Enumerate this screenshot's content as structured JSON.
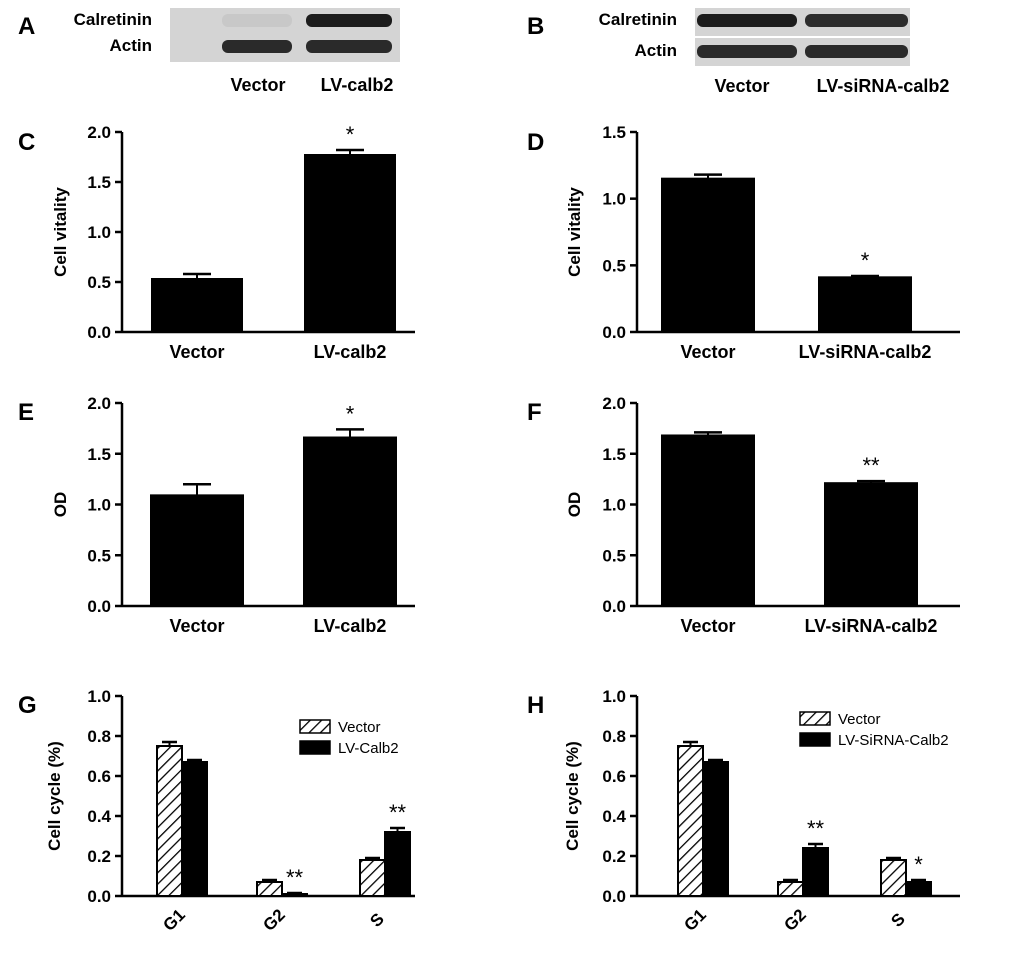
{
  "blots": [
    {
      "letter": "A",
      "rows": [
        "Calretinin",
        "Actin"
      ],
      "lanes": [
        "Vector",
        "LV-calb2"
      ],
      "colors": {
        "Calretinin": [
          "#c8c8c8",
          "#1c1c1c"
        ],
        "Actin": [
          "#2a2a2a",
          "#2a2a2a"
        ]
      }
    },
    {
      "letter": "B",
      "rows": [
        "Calretinin",
        "Actin"
      ],
      "lanes": [
        "Vector",
        "LV-siRNA-calb2"
      ],
      "colors": {
        "Calretinin": [
          "#1c1c1c",
          "#2c2c2c"
        ],
        "Actin": [
          "#2a2a2a",
          "#2a2a2a"
        ]
      }
    }
  ],
  "chart_data": [
    {
      "letter": "C",
      "type": "bar",
      "ylabel": "Cell  vitality",
      "categories": [
        "Vector",
        "LV-calb2"
      ],
      "values": [
        0.53,
        1.77
      ],
      "errors": [
        0.05,
        0.05
      ],
      "significance": [
        "",
        "*"
      ],
      "ylim": [
        0,
        2.0
      ],
      "yticks": [
        "0.0",
        "0.5",
        "1.0",
        "1.5",
        "2.0"
      ],
      "ystep": 0.5
    },
    {
      "letter": "D",
      "type": "bar",
      "ylabel": "Cell  vitality",
      "categories": [
        "Vector",
        "LV-siRNA-calb2"
      ],
      "values": [
        1.15,
        0.41
      ],
      "errors": [
        0.03,
        0.01
      ],
      "significance": [
        "",
        "*"
      ],
      "ylim": [
        0,
        1.5
      ],
      "yticks": [
        "0.0",
        "0.5",
        "1.0",
        "1.5"
      ],
      "ystep": 0.5
    },
    {
      "letter": "E",
      "type": "bar",
      "ylabel": "OD",
      "categories": [
        "Vector",
        "LV-calb2"
      ],
      "values": [
        1.09,
        1.66
      ],
      "errors": [
        0.11,
        0.08
      ],
      "significance": [
        "",
        "*"
      ],
      "ylim": [
        0,
        2.0
      ],
      "yticks": [
        "0.0",
        "0.5",
        "1.0",
        "1.5",
        "2.0"
      ],
      "ystep": 0.5
    },
    {
      "letter": "F",
      "type": "bar",
      "ylabel": "OD",
      "categories": [
        "Vector",
        "LV-siRNA-calb2"
      ],
      "values": [
        1.68,
        1.21
      ],
      "errors": [
        0.03,
        0.02
      ],
      "significance": [
        "",
        "**"
      ],
      "ylim": [
        0,
        2.0
      ],
      "yticks": [
        "0.0",
        "0.5",
        "1.0",
        "1.5",
        "2.0"
      ],
      "ystep": 0.5
    },
    {
      "letter": "G",
      "type": "bar",
      "ylabel": "Cell cycle (%)",
      "categories": [
        "G1",
        "G2",
        "S"
      ],
      "series": [
        {
          "name": "Vector",
          "values": [
            0.75,
            0.07,
            0.18
          ],
          "errors": [
            0.02,
            0.01,
            0.01
          ],
          "significance": [
            "",
            "",
            ""
          ]
        },
        {
          "name": "LV-Calb2",
          "values": [
            0.67,
            0.01,
            0.32
          ],
          "errors": [
            0.01,
            0.005,
            0.02
          ],
          "significance": [
            "",
            "**",
            "**"
          ]
        }
      ],
      "ylim": [
        0,
        1.0
      ],
      "yticks": [
        "0.0",
        "0.2",
        "0.4",
        "0.6",
        "0.8",
        "1.0"
      ],
      "ystep": 0.2,
      "legend": "top-right"
    },
    {
      "letter": "H",
      "type": "bar",
      "ylabel": "Cell cycle (%)",
      "categories": [
        "G1",
        "G2",
        "S"
      ],
      "series": [
        {
          "name": "Vector",
          "values": [
            0.75,
            0.07,
            0.18
          ],
          "errors": [
            0.02,
            0.01,
            0.01
          ],
          "significance": [
            "",
            "",
            ""
          ]
        },
        {
          "name": "LV-SiRNA-Calb2",
          "values": [
            0.67,
            0.24,
            0.07
          ],
          "errors": [
            0.01,
            0.02,
            0.01
          ],
          "significance": [
            "",
            "**",
            "*"
          ]
        }
      ],
      "ylim": [
        0,
        1.0
      ],
      "yticks": [
        "0.0",
        "0.2",
        "0.4",
        "0.6",
        "0.8",
        "1.0"
      ],
      "ystep": 0.2,
      "legend": "top-right"
    }
  ]
}
